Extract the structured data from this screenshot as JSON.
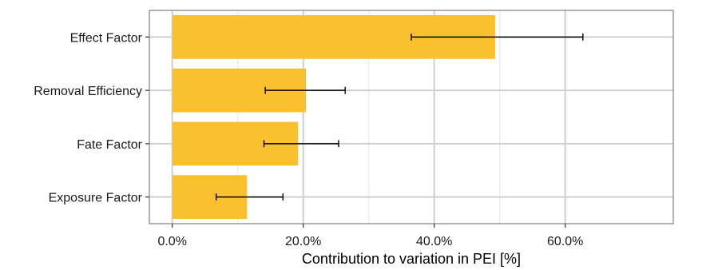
{
  "chart_data": {
    "type": "bar",
    "orientation": "horizontal",
    "title": "",
    "xlabel": "Contribution to variation in PEI [%]",
    "ylabel": "",
    "categories": [
      "Effect Factor",
      "Removal Efficiency",
      "Fate Factor",
      "Exposure Factor"
    ],
    "values": [
      49.3,
      20.4,
      19.2,
      11.4
    ],
    "error_low": [
      36.5,
      14.2,
      14.0,
      6.7
    ],
    "error_high": [
      62.7,
      26.4,
      25.4,
      16.9
    ],
    "xlim": [
      -3.5,
      76.5
    ],
    "xticks": [
      0,
      20,
      40,
      60
    ],
    "xtick_labels": [
      "0.0%",
      "20.0%",
      "40.0%",
      "60.0%"
    ],
    "grid": true,
    "legend": "none",
    "colors": {
      "bar": "#fbc02d",
      "error_bar": "#000000",
      "grid_major": "#cfcfcf",
      "grid_minor": "#e6e6e6",
      "panel_border": "#7f7f7f"
    }
  }
}
